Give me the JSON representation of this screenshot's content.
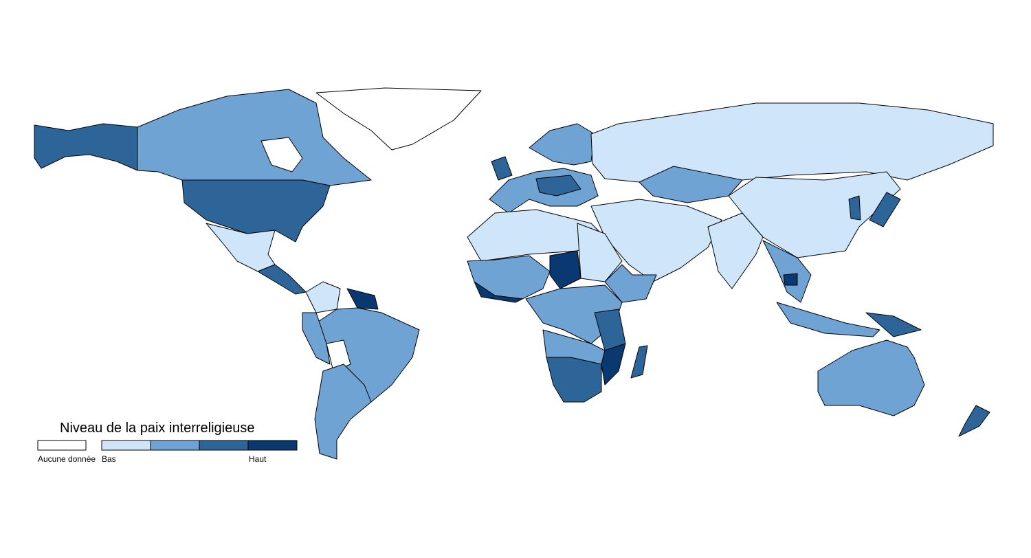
{
  "legend": {
    "title": "Niveau de la paix interreligieuse",
    "no_data": {
      "label": "Aucune donnée",
      "color": "#ffffff"
    },
    "classes": [
      {
        "color": "#cfe5fa"
      },
      {
        "color": "#6fa3d3"
      },
      {
        "color": "#2e6599"
      },
      {
        "color": "#0a3870"
      }
    ],
    "low_label": "Bas",
    "high_label": "Haut"
  }
}
